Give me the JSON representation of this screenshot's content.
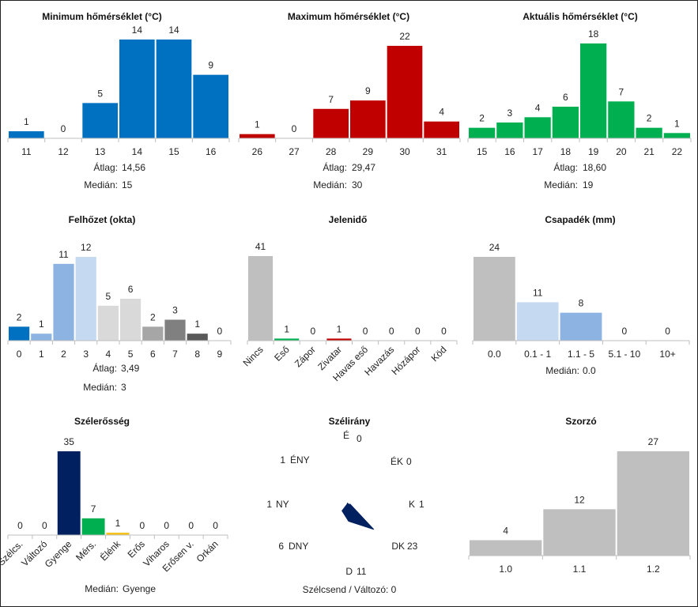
{
  "colors": {
    "blue": "#0070c0",
    "red": "#c00000",
    "green": "#00b050",
    "gray": "#bfbfbf",
    "navy": "#002060",
    "amber": "#f5c11a",
    "light_blue": "#c5d9f1",
    "mid_blue": "#8db3e2",
    "light_gray": "#d9d9d9",
    "mid_gray": "#a6a6a6",
    "dark_gray": "#808080",
    "darker_gray": "#595959"
  },
  "chart_data": [
    {
      "type": "bar",
      "title": "Minimum hőmérséklet (°C)",
      "categories": [
        "11",
        "12",
        "13",
        "14",
        "15",
        "16"
      ],
      "values": [
        1,
        0,
        5,
        14,
        14,
        9
      ],
      "color": "blue",
      "stats": [
        {
          "label": "Átlag:",
          "value": "14,56"
        },
        {
          "label": "Medián:",
          "value": "15"
        }
      ]
    },
    {
      "type": "bar",
      "title": "Maximum hőmérséklet (°C)",
      "categories": [
        "26",
        "27",
        "28",
        "29",
        "30",
        "31"
      ],
      "values": [
        1,
        0,
        7,
        9,
        22,
        4
      ],
      "color": "red",
      "stats": [
        {
          "label": "Átlag:",
          "value": "29,47"
        },
        {
          "label": "Medián:",
          "value": "30"
        }
      ]
    },
    {
      "type": "bar",
      "title": "Aktuális hőmérséklet (°C)",
      "categories": [
        "15",
        "16",
        "17",
        "18",
        "19",
        "20",
        "21",
        "22"
      ],
      "values": [
        2,
        3,
        4,
        6,
        18,
        7,
        2,
        1
      ],
      "color": "green",
      "stats": [
        {
          "label": "Átlag:",
          "value": "18,60"
        },
        {
          "label": "Medián:",
          "value": "19"
        }
      ]
    },
    {
      "type": "bar",
      "title": "Felhőzet (okta)",
      "categories": [
        "0",
        "1",
        "2",
        "3",
        "4",
        "5",
        "6",
        "7",
        "8",
        "9"
      ],
      "values": [
        2,
        1,
        11,
        12,
        5,
        6,
        2,
        3,
        1,
        0
      ],
      "bar_colors": [
        "blue",
        "mid_blue",
        "mid_blue",
        "light_blue",
        "light_gray",
        "light_gray",
        "mid_gray",
        "dark_gray",
        "darker_gray",
        "gray"
      ],
      "stats": [
        {
          "label": "Átlag:",
          "value": "3,49"
        },
        {
          "label": "Medián:",
          "value": "3"
        }
      ]
    },
    {
      "type": "bar",
      "title": "Jelenidő",
      "categories": [
        "Nincs",
        "Eső",
        "Zápor",
        "Zivatar",
        "Havas eső",
        "Havazás",
        "Hózápor",
        "Köd"
      ],
      "values": [
        41,
        1,
        0,
        1,
        0,
        0,
        0,
        0
      ],
      "bar_colors": [
        "gray",
        "green",
        "green",
        "red",
        "gray",
        "gray",
        "gray",
        "gray"
      ],
      "stats": []
    },
    {
      "type": "bar",
      "title": "Csapadék (mm)",
      "categories": [
        "0.0",
        "0.1 - 1",
        "1.1 - 5",
        "5.1 - 10",
        "10+"
      ],
      "values": [
        24,
        11,
        8,
        0,
        0
      ],
      "bar_colors": [
        "gray",
        "light_blue",
        "mid_blue",
        "mid_blue",
        "mid_blue"
      ],
      "stats": [
        {
          "label": "Medián:",
          "value": "0.0"
        }
      ]
    },
    {
      "type": "bar",
      "title": "Szélerősség",
      "categories": [
        "Szélcs.",
        "Változó",
        "Gyenge",
        "Mérs.",
        "Élénk",
        "Erős",
        "Viharos",
        "Erősen v.",
        "Orkán"
      ],
      "values": [
        0,
        0,
        35,
        7,
        1,
        0,
        0,
        0,
        0
      ],
      "bar_colors": [
        "gray",
        "gray",
        "navy",
        "green",
        "amber",
        "gray",
        "gray",
        "gray",
        "gray"
      ],
      "stats": [
        {
          "label": "Medián:",
          "value": "Gyenge"
        }
      ]
    },
    {
      "type": "radar",
      "title": "Szélirány",
      "directions": [
        {
          "label": "É",
          "value": 0
        },
        {
          "label": "ÉK",
          "value": 0
        },
        {
          "label": "K",
          "value": 1
        },
        {
          "label": "DK",
          "value": 23
        },
        {
          "label": "D",
          "value": 11
        },
        {
          "label": "DNY",
          "value": 6
        },
        {
          "label": "NY",
          "value": 1
        },
        {
          "label": "ÉNY",
          "value": 1
        }
      ],
      "footer": "Szélcsend / Változó: 0"
    },
    {
      "type": "bar",
      "title": "Szorzó",
      "categories": [
        "1.0",
        "1.1",
        "1.2"
      ],
      "values": [
        4,
        12,
        27
      ],
      "color": "gray",
      "stats": []
    }
  ]
}
